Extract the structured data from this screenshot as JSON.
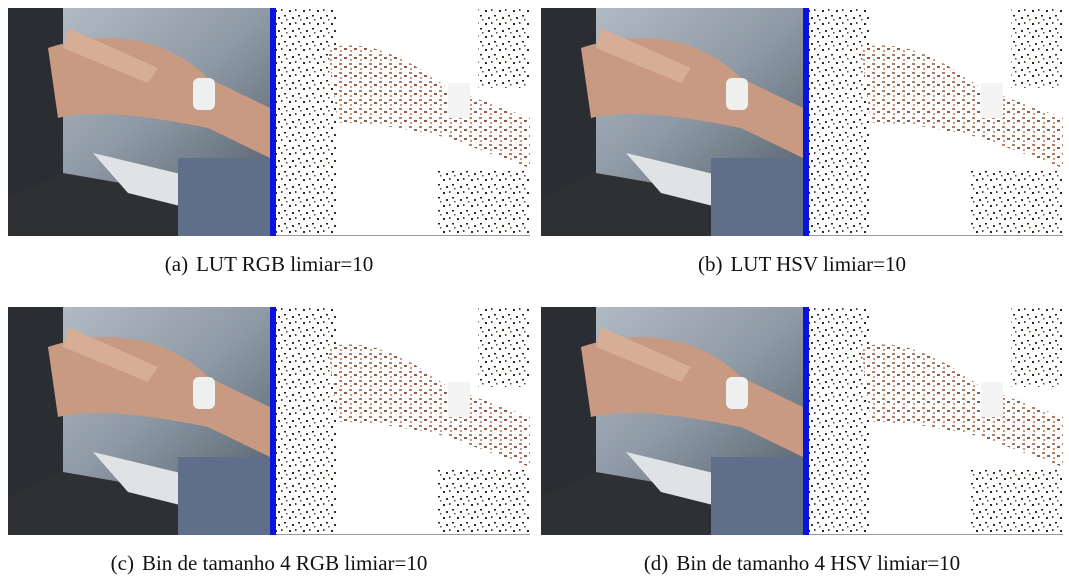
{
  "figures": [
    {
      "label": "(a)",
      "caption": "LUT RGB limiar=10"
    },
    {
      "label": "(b)",
      "caption": "LUT HSV limiar=10"
    },
    {
      "label": "(c)",
      "caption": "Bin de tamanho 4 RGB limiar=10"
    },
    {
      "label": "(d)",
      "caption": "Bin de tamanho 4 HSV limiar=10"
    }
  ]
}
